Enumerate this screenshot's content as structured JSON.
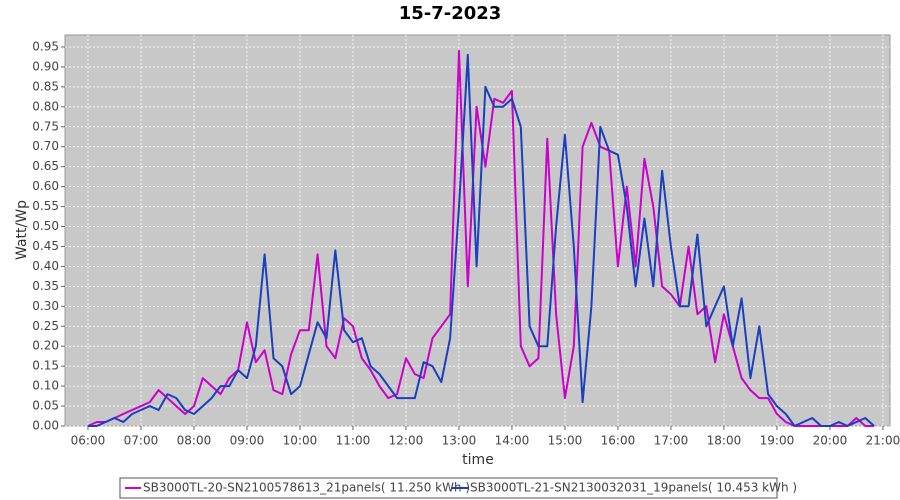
{
  "chart_data": {
    "type": "line",
    "title": "15-7-2023",
    "xlabel": "time",
    "ylabel": "Watt/Wp",
    "x": [
      "06:00",
      "06:10",
      "06:20",
      "06:30",
      "06:40",
      "06:50",
      "07:00",
      "07:10",
      "07:20",
      "07:30",
      "07:40",
      "07:50",
      "08:00",
      "08:10",
      "08:20",
      "08:30",
      "08:40",
      "08:50",
      "09:00",
      "09:10",
      "09:20",
      "09:30",
      "09:40",
      "09:50",
      "10:00",
      "10:10",
      "10:20",
      "10:30",
      "10:40",
      "10:50",
      "11:00",
      "11:10",
      "11:20",
      "11:30",
      "11:40",
      "11:50",
      "12:00",
      "12:10",
      "12:20",
      "12:30",
      "12:40",
      "12:50",
      "13:00",
      "13:10",
      "13:20",
      "13:30",
      "13:40",
      "13:50",
      "14:00",
      "14:10",
      "14:20",
      "14:30",
      "14:40",
      "14:50",
      "15:00",
      "15:10",
      "15:20",
      "15:30",
      "15:40",
      "15:50",
      "16:00",
      "16:10",
      "16:20",
      "16:30",
      "16:40",
      "16:50",
      "17:00",
      "17:10",
      "17:20",
      "17:30",
      "17:40",
      "17:50",
      "18:00",
      "18:10",
      "18:20",
      "18:30",
      "18:40",
      "18:50",
      "19:00",
      "19:10",
      "19:20",
      "19:30",
      "19:40",
      "19:50",
      "20:00",
      "20:10",
      "20:20",
      "20:30",
      "20:40",
      "20:50"
    ],
    "series": [
      {
        "name": "SB3000TL-20-SN2100578613_21panels( 11.250 kWh )",
        "color": "#cc00cc",
        "values": [
          0,
          0.01,
          0.01,
          0.02,
          0.03,
          0.04,
          0.05,
          0.06,
          0.09,
          0.07,
          0.05,
          0.03,
          0.05,
          0.12,
          0.1,
          0.08,
          0.12,
          0.14,
          0.26,
          0.16,
          0.19,
          0.09,
          0.08,
          0.18,
          0.24,
          0.24,
          0.43,
          0.2,
          0.17,
          0.27,
          0.25,
          0.17,
          0.14,
          0.1,
          0.07,
          0.08,
          0.17,
          0.13,
          0.12,
          0.22,
          0.25,
          0.28,
          0.94,
          0.35,
          0.8,
          0.65,
          0.82,
          0.81,
          0.84,
          0.2,
          0.15,
          0.17,
          0.72,
          0.28,
          0.07,
          0.2,
          0.7,
          0.76,
          0.7,
          0.69,
          0.4,
          0.6,
          0.4,
          0.67,
          0.55,
          0.35,
          0.33,
          0.3,
          0.45,
          0.28,
          0.3,
          0.16,
          0.28,
          0.2,
          0.12,
          0.09,
          0.07,
          0.07,
          0.03,
          0.01,
          0,
          0,
          0,
          0,
          0,
          0,
          0,
          0.02,
          0,
          0
        ]
      },
      {
        "name": "SB3000TL-21-SN2130032031_19panels( 10.453 kWh )",
        "color": "#1a3fbf",
        "values": [
          0,
          0,
          0.01,
          0.02,
          0.01,
          0.03,
          0.04,
          0.05,
          0.04,
          0.08,
          0.07,
          0.04,
          0.03,
          0.05,
          0.07,
          0.1,
          0.1,
          0.14,
          0.12,
          0.2,
          0.43,
          0.17,
          0.15,
          0.08,
          0.1,
          0.18,
          0.26,
          0.22,
          0.44,
          0.24,
          0.21,
          0.22,
          0.15,
          0.13,
          0.1,
          0.07,
          0.07,
          0.07,
          0.16,
          0.15,
          0.11,
          0.22,
          0.55,
          0.93,
          0.4,
          0.85,
          0.8,
          0.8,
          0.82,
          0.75,
          0.25,
          0.2,
          0.2,
          0.5,
          0.73,
          0.45,
          0.06,
          0.3,
          0.75,
          0.69,
          0.68,
          0.55,
          0.35,
          0.52,
          0.35,
          0.64,
          0.45,
          0.3,
          0.3,
          0.48,
          0.25,
          0.3,
          0.35,
          0.2,
          0.32,
          0.12,
          0.25,
          0.08,
          0.05,
          0.03,
          0,
          0.01,
          0.02,
          0,
          0,
          0.01,
          0,
          0.01,
          0.02,
          0
        ]
      }
    ],
    "xlim": [
      "05:34",
      "21:08"
    ],
    "xticks": [
      "06:00",
      "07:00",
      "08:00",
      "09:00",
      "10:00",
      "11:00",
      "12:00",
      "13:00",
      "14:00",
      "15:00",
      "16:00",
      "17:00",
      "18:00",
      "19:00",
      "20:00",
      "21:00"
    ],
    "ylim": [
      0,
      0.98
    ],
    "yticks": [
      {
        "value": 0,
        "label": "0.00"
      },
      {
        "value": 0.05,
        "label": "0.05"
      },
      {
        "value": 0.1,
        "label": "0.10"
      },
      {
        "value": 0.15,
        "label": "0.15"
      },
      {
        "value": 0.2,
        "label": "0.20"
      },
      {
        "value": 0.25,
        "label": "0.25"
      },
      {
        "value": 0.3,
        "label": "0.30"
      },
      {
        "value": 0.35,
        "label": "0.35"
      },
      {
        "value": 0.4,
        "label": "0.40"
      },
      {
        "value": 0.45,
        "label": "0.45"
      },
      {
        "value": 0.5,
        "label": "0.50"
      },
      {
        "value": 0.55,
        "label": "0.55"
      },
      {
        "value": 0.6,
        "label": "0.60"
      },
      {
        "value": 0.65,
        "label": "0.65"
      },
      {
        "value": 0.7,
        "label": "0.70"
      },
      {
        "value": 0.75,
        "label": "0.75"
      },
      {
        "value": 0.8,
        "label": "0.80"
      },
      {
        "value": 0.85,
        "label": "0.85"
      },
      {
        "value": 0.9,
        "label": "0.90"
      },
      {
        "value": 0.95,
        "label": "0.95"
      }
    ],
    "grid": true,
    "legend": "bottom"
  }
}
